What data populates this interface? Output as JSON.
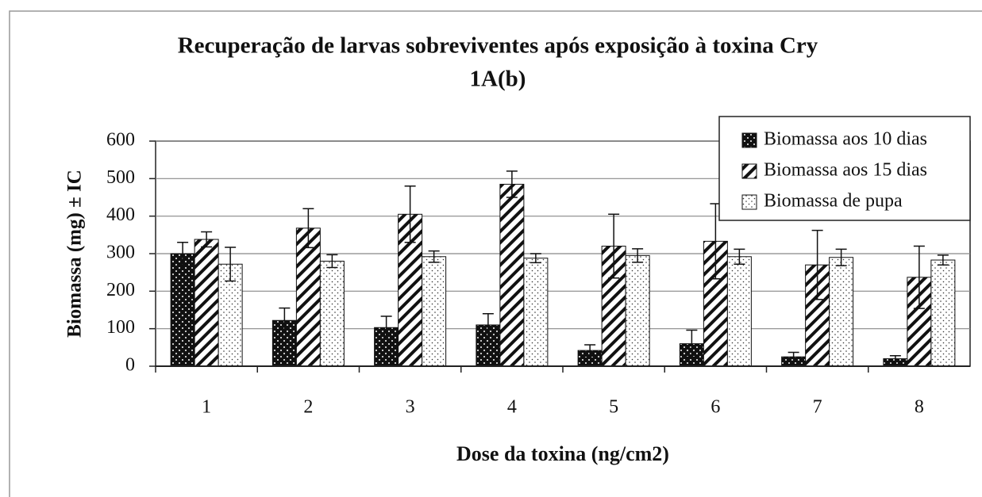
{
  "chart_data": {
    "type": "bar",
    "title": [
      "Recuperação de larvas sobreviventes após exposição à toxina  Cry",
      "1A(b)"
    ],
    "x_label": "Dose da toxina (ng/cm2)",
    "y_label": "Biomassa (mg) ± IC",
    "categories": [
      "1",
      "2",
      "3",
      "4",
      "5",
      "6",
      "7",
      "8"
    ],
    "series": [
      {
        "name": "Biomassa aos 10 dias",
        "color": "#111111",
        "pattern": "dots",
        "values": [
          300,
          122,
          103,
          110,
          42,
          60,
          25,
          20
        ],
        "errors": [
          30,
          33,
          30,
          30,
          15,
          36,
          12,
          8
        ]
      },
      {
        "name": "Biomassa aos 15 dias",
        "color": "#ffffff",
        "pattern": "hatch",
        "values": [
          338,
          368,
          405,
          485,
          320,
          333,
          270,
          237
        ],
        "errors": [
          20,
          52,
          75,
          35,
          85,
          100,
          92,
          83
        ]
      },
      {
        "name": "Biomassa de pupa",
        "color": "#ffffff",
        "pattern": "fine-dots",
        "values": [
          272,
          280,
          292,
          288,
          295,
          292,
          290,
          283
        ],
        "errors": [
          45,
          17,
          15,
          12,
          18,
          20,
          22,
          13
        ]
      }
    ],
    "ylim": [
      0,
      600
    ],
    "yticks": [
      0,
      100,
      200,
      300,
      400,
      500,
      600
    ],
    "grid": true,
    "legend": "top-right"
  }
}
